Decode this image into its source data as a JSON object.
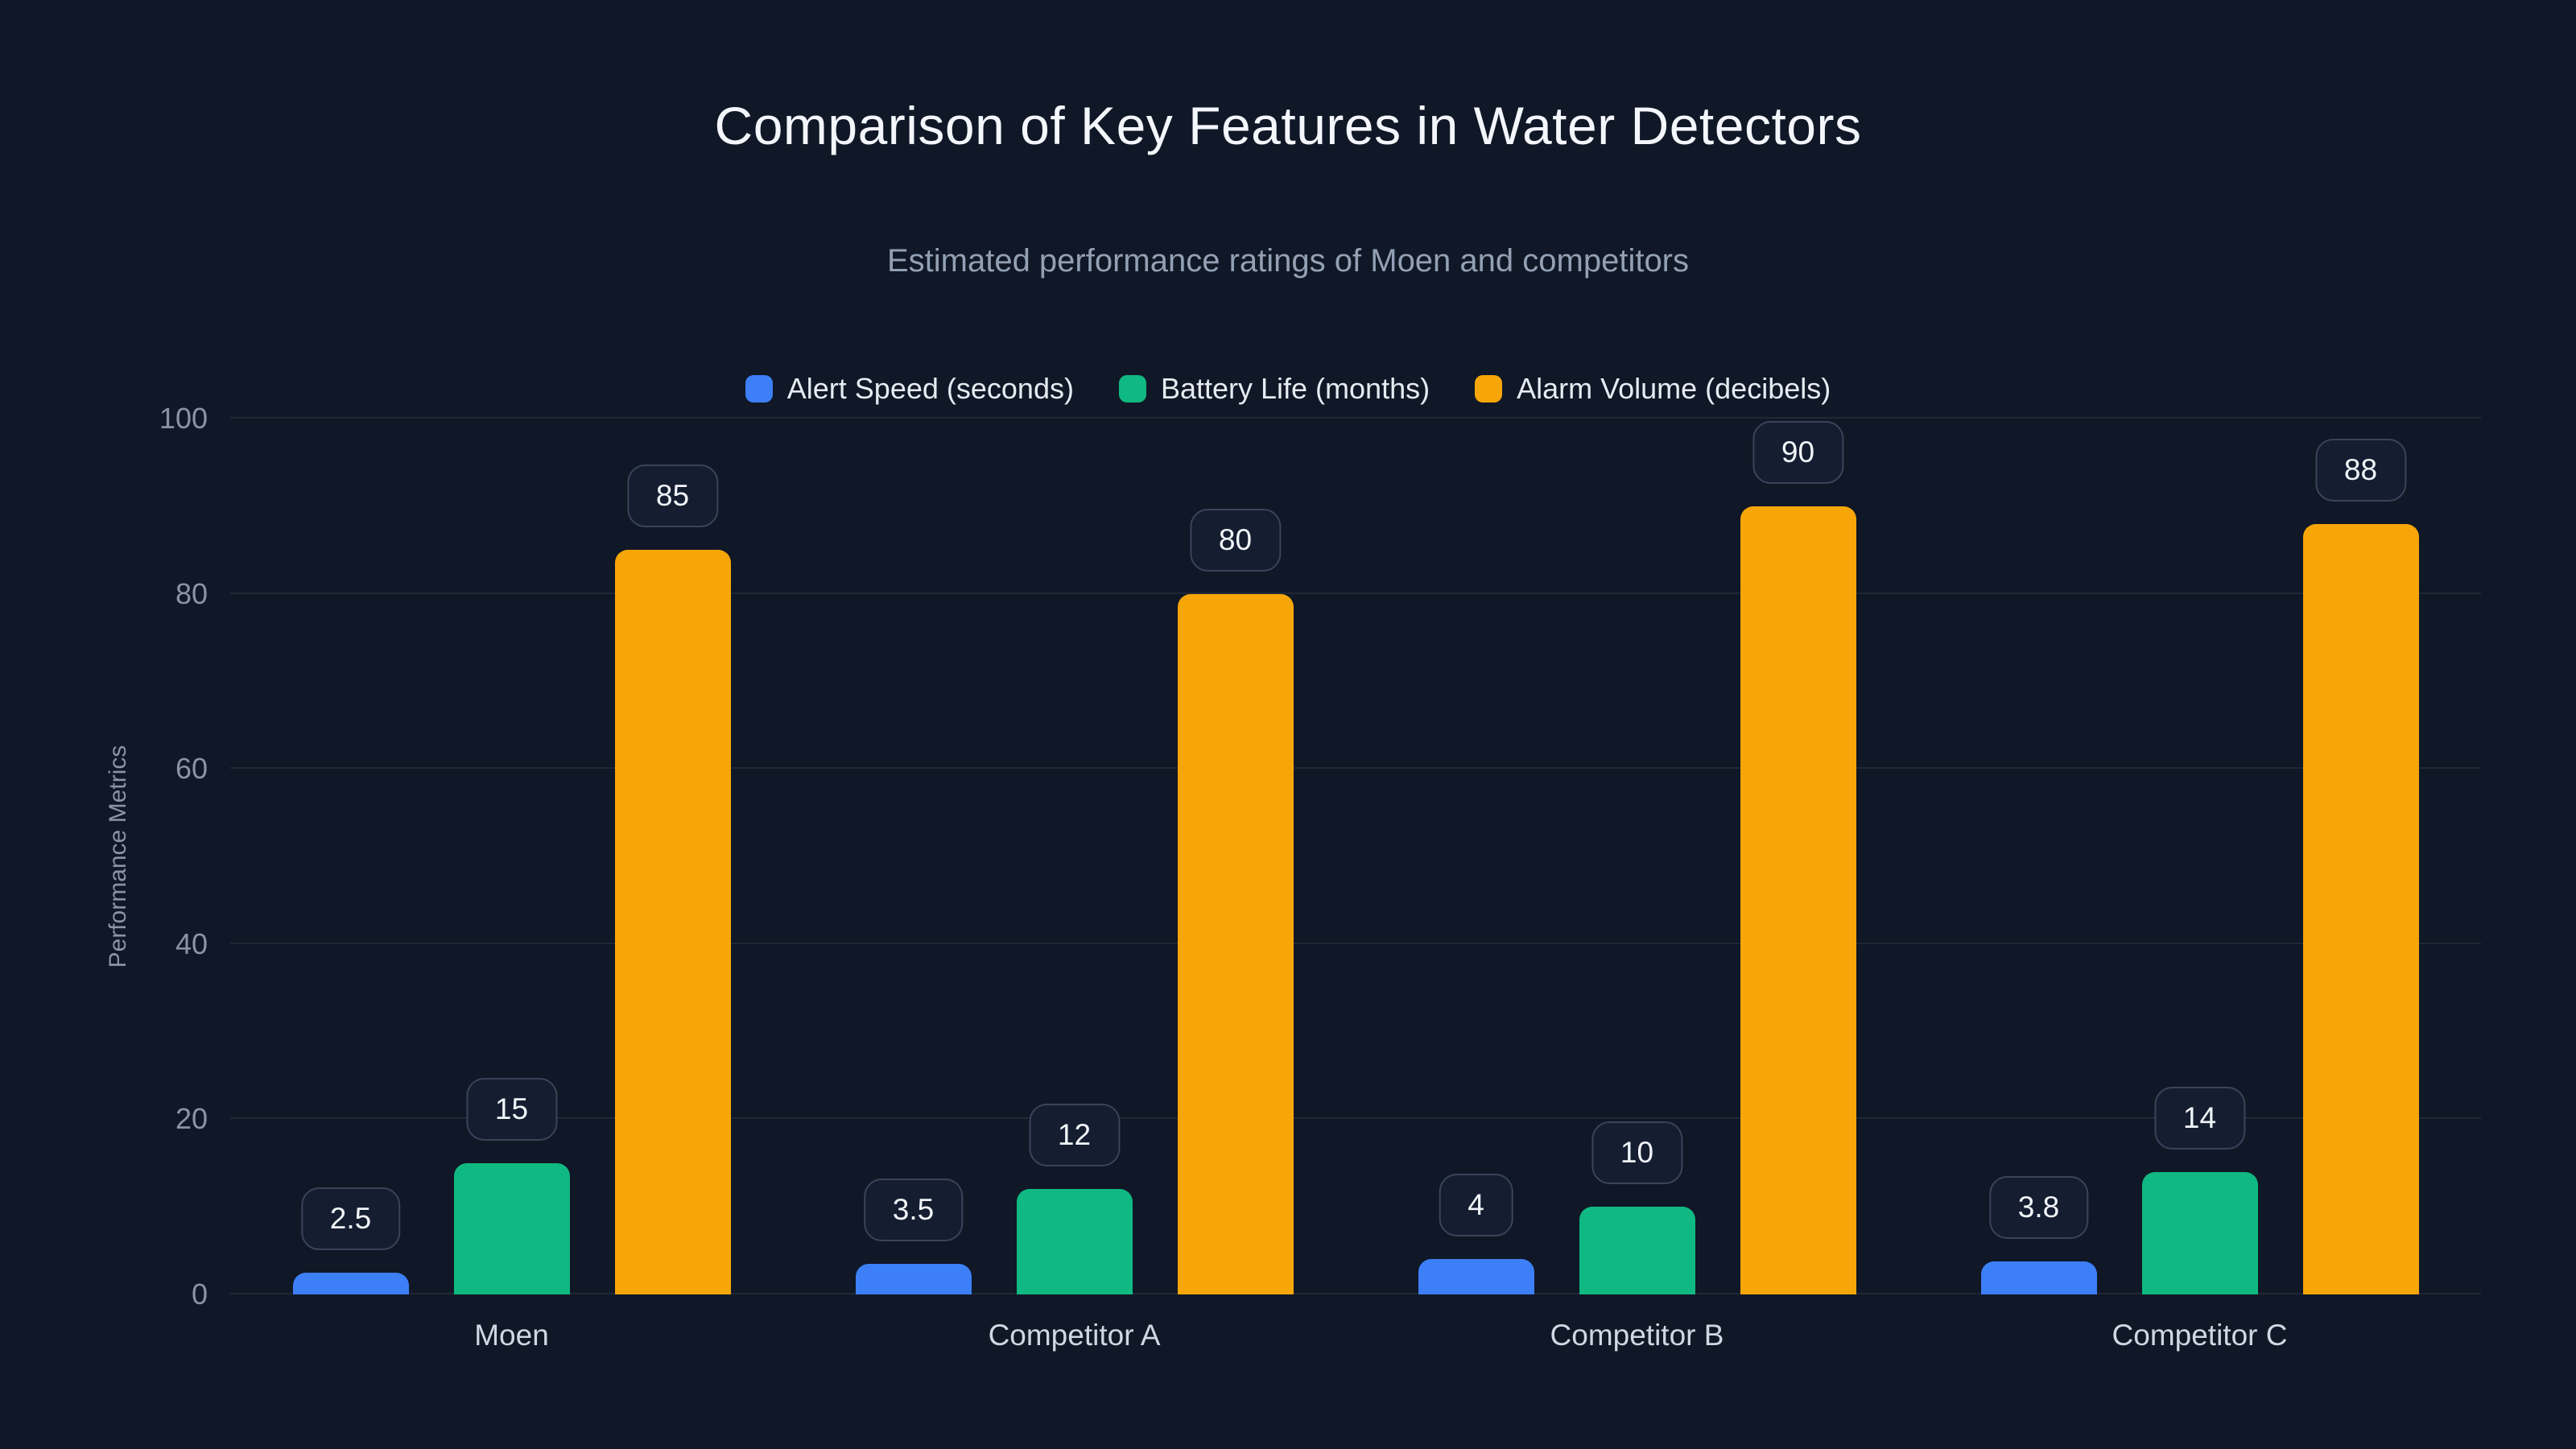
{
  "chart_data": {
    "type": "bar",
    "title": "Comparison of Key Features in Water Detectors",
    "subtitle": "Estimated performance ratings of Moen and competitors",
    "ylabel": "Performance Metrics",
    "xlabel": "",
    "ylim": [
      0,
      100
    ],
    "yticks": [
      0,
      20,
      40,
      60,
      80,
      100
    ],
    "grid": true,
    "legend_position": "top",
    "categories": [
      "Moen",
      "Competitor A",
      "Competitor B",
      "Competitor C"
    ],
    "series": [
      {
        "name": "Alert Speed (seconds)",
        "color": "#3d7ff7",
        "values": [
          2.5,
          3.5,
          4,
          3.8
        ]
      },
      {
        "name": "Battery Life (months)",
        "color": "#10b981",
        "values": [
          15,
          12,
          10,
          14
        ]
      },
      {
        "name": "Alarm Volume (decibels)",
        "color": "#f6a609",
        "values": [
          85,
          80,
          90,
          88
        ]
      }
    ],
    "colors": {
      "background": "#101726",
      "title_text": "#f3f6fb",
      "subtitle_text": "#93a0b4",
      "axis_text": "#8a94a6",
      "gridline": "rgba(255,255,255,0.07)"
    }
  }
}
